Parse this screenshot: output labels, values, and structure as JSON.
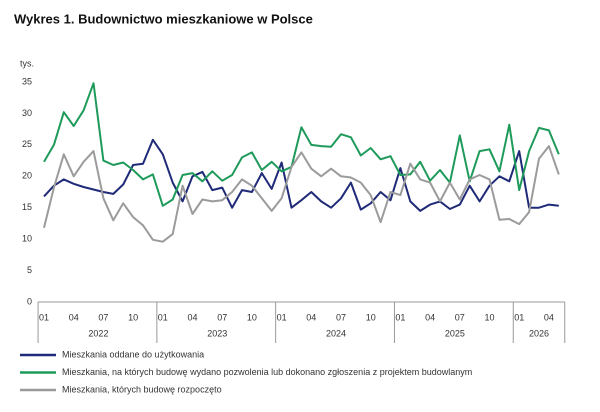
{
  "chart_data": {
    "type": "line",
    "title": "Wykres 1. Budownictwo mieszkaniowe w Polsce",
    "y_unit_label": "tys.",
    "categories": [
      "01",
      null,
      null,
      "04",
      null,
      null,
      "07",
      null,
      null,
      "10",
      null,
      null,
      "01",
      null,
      null,
      "04",
      null,
      null,
      "07",
      null,
      null,
      "10",
      null,
      null,
      "01",
      null,
      null,
      "04",
      null,
      null,
      "07",
      null,
      null,
      "10",
      null,
      null,
      "01",
      null,
      null,
      "04",
      null,
      null,
      "07",
      null,
      null,
      "10",
      null,
      null,
      "01",
      null,
      null,
      "04",
      null
    ],
    "year_groups": [
      "2022",
      "2023",
      "2024",
      "2025",
      "2026"
    ],
    "series": [
      {
        "name": "Mieszkania oddane do użytkowania",
        "color": "#1f2a78",
        "values": [
          16.8,
          18.5,
          19.5,
          18.8,
          18.3,
          17.9,
          17.5,
          17.2,
          18.7,
          21.8,
          22.0,
          25.8,
          23.5,
          19.0,
          16.0,
          20.0,
          20.7,
          17.8,
          18.2,
          15.0,
          17.8,
          17.5,
          20.5,
          18.0,
          22.2,
          15.0,
          16.2,
          17.5,
          16.0,
          15.0,
          16.5,
          19.0,
          14.7,
          15.7,
          17.5,
          16.2,
          21.3,
          16.0,
          14.5,
          15.5,
          16.0,
          14.8,
          15.5,
          18.5,
          16.0,
          18.5,
          20.0,
          19.2,
          24.0,
          15.0,
          15.0,
          15.5,
          15.3
        ]
      },
      {
        "name": "Mieszkania, na których budowę wydano pozwolenia lub dokonano zgłoszenia z projektem budowlanym",
        "color": "#1e9a5a",
        "values": [
          22.3,
          25.0,
          30.2,
          28.0,
          30.5,
          34.8,
          22.5,
          21.8,
          22.2,
          21.0,
          19.5,
          20.3,
          15.3,
          16.3,
          20.2,
          20.5,
          19.2,
          20.8,
          19.3,
          20.2,
          23.0,
          23.8,
          21.0,
          22.3,
          20.8,
          21.5,
          27.8,
          25.0,
          24.8,
          24.7,
          26.7,
          26.2,
          23.3,
          24.5,
          22.7,
          23.2,
          20.2,
          20.3,
          22.3,
          19.3,
          21.0,
          19.0,
          26.5,
          19.2,
          24.0,
          24.3,
          20.8,
          28.2,
          17.8,
          24.0,
          27.7,
          27.3,
          23.5
        ]
      },
      {
        "name": "Mieszkania, których budowę rozpoczęto",
        "color": "#9b9b9b",
        "values": [
          11.8,
          18.2,
          23.5,
          20.0,
          22.3,
          24.0,
          16.5,
          13.0,
          15.7,
          13.5,
          12.2,
          9.9,
          9.6,
          10.8,
          18.5,
          14.0,
          16.3,
          16.0,
          16.2,
          17.5,
          19.5,
          18.5,
          16.5,
          14.5,
          16.5,
          21.5,
          23.8,
          21.2,
          20.0,
          21.2,
          20.0,
          19.8,
          19.0,
          17.0,
          12.7,
          17.5,
          17.0,
          22.0,
          19.5,
          19.0,
          16.0,
          19.0,
          16.3,
          19.5,
          20.2,
          19.5,
          13.1,
          13.2,
          12.4,
          14.3,
          22.8,
          24.8,
          20.3
        ]
      }
    ],
    "ylim": [
      0,
      35
    ],
    "yticks": [
      0,
      5,
      10,
      15,
      20,
      25,
      30,
      35
    ],
    "grid": false
  }
}
